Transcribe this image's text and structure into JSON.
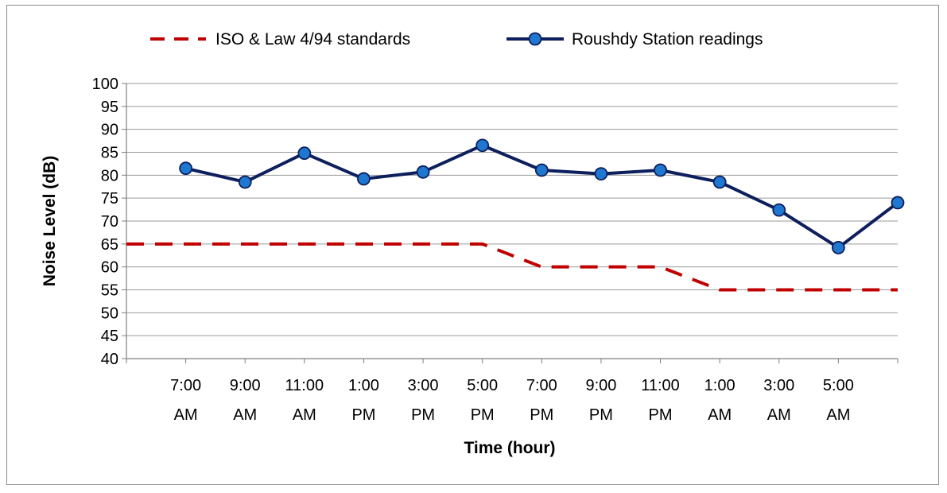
{
  "chart_data": {
    "type": "line",
    "xlabel": "Time (hour)",
    "ylabel": "Noise Level (dB)",
    "ylim": [
      40,
      100
    ],
    "ytick_step": 5,
    "grid": true,
    "legend_position": "top",
    "categories": [
      [
        "7:00",
        "AM"
      ],
      [
        "9:00",
        "AM"
      ],
      [
        "11:00",
        "AM"
      ],
      [
        "1:00",
        "PM"
      ],
      [
        "3:00",
        "PM"
      ],
      [
        "5:00",
        "PM"
      ],
      [
        "7:00",
        "PM"
      ],
      [
        "9:00",
        "PM"
      ],
      [
        "11:00",
        "PM"
      ],
      [
        "1:00",
        "AM"
      ],
      [
        "3:00",
        "AM"
      ],
      [
        "5:00",
        "AM"
      ]
    ],
    "series": [
      {
        "name": "ISO & Law 4/94 standards",
        "style": "dashed",
        "color": "#c00000",
        "points": [
          [
            0,
            65
          ],
          [
            6,
            65
          ],
          [
            7,
            60
          ],
          [
            9,
            60
          ],
          [
            10,
            55
          ],
          [
            13,
            55
          ]
        ]
      },
      {
        "name": "Roushdy Station readings",
        "style": "solid-markers",
        "color": "#0d1f5c",
        "marker_color": "#1f77d0",
        "points": [
          [
            1,
            81.5
          ],
          [
            2,
            78.5
          ],
          [
            3,
            84.8
          ],
          [
            4,
            79.2
          ],
          [
            5,
            80.7
          ],
          [
            6,
            86.5
          ],
          [
            7,
            81.1
          ],
          [
            8,
            80.3
          ],
          [
            9,
            81.1
          ],
          [
            10,
            78.5
          ],
          [
            11,
            72.4
          ],
          [
            12,
            64.2
          ],
          [
            13,
            74
          ]
        ]
      }
    ]
  }
}
